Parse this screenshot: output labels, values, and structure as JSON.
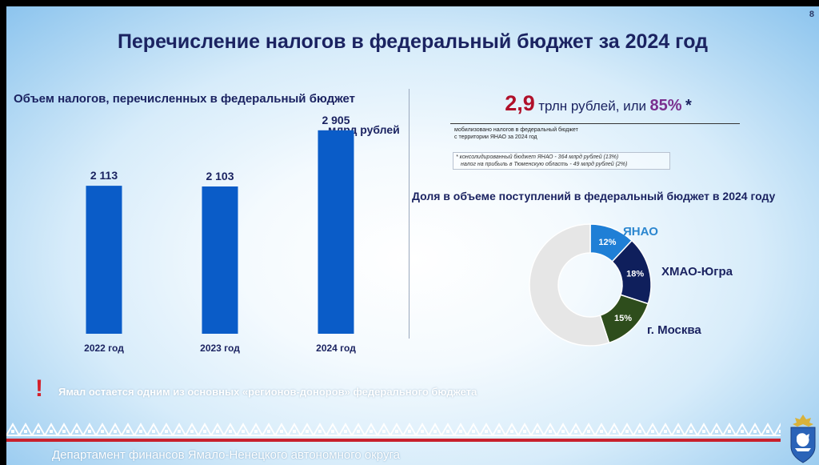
{
  "slide": {
    "page_number": "8",
    "title": "Перечисление налогов в федеральный бюджет за 2024 год"
  },
  "left_panel": {
    "heading": "Объем налогов, перечисленных в федеральный бюджет",
    "unit": "млрд рублей"
  },
  "chart_data": [
    {
      "type": "bar",
      "title": "Объем налогов, перечисленных в федеральный бюджет",
      "ylabel": "млрд рублей",
      "categories": [
        "2022 год",
        "2023 год",
        "2024 год"
      ],
      "values": [
        2113,
        2103,
        2905
      ],
      "value_labels": [
        "2 113",
        "2 103",
        "2 905"
      ],
      "ylim": [
        0,
        3200
      ],
      "color": "#0a5cc8",
      "grid": false
    },
    {
      "type": "pie",
      "title": "Доля в объеме поступлений в федеральный бюджет в 2024 году",
      "donut": true,
      "slices": [
        {
          "name": "ЯНАО",
          "value": 12,
          "label": "12%",
          "color": "#1f7fd6"
        },
        {
          "name": "ХМАО-Югра",
          "value": 18,
          "label": "18%",
          "color": "#0f1f5c"
        },
        {
          "name": "г. Москва",
          "value": 15,
          "label": "15%",
          "color": "#2e4d1c"
        },
        {
          "name": "",
          "value": 55,
          "label": "",
          "color": "#e6e6e6"
        }
      ]
    }
  ],
  "right_panel": {
    "headline_value": "2,9",
    "headline_mid": "трлн рублей, или",
    "headline_pct": "85%",
    "headline_star": "*",
    "note_line1": "мобилизовано налогов в федеральный бюджет",
    "note_line2": "с территории ЯНАО за 2024 год",
    "footnote_line1": "* консолидированный бюджет ЯНАО - 364 млрд рублей (13%)",
    "footnote_line2": "налог на прибыль в Тюменскую область - 49 млрд рублей (2%)",
    "pie_heading": "Доля в объеме поступлений в федеральный бюджет в 2024 году",
    "label_yanao": "ЯНАО",
    "label_hmao": "ХМАО-Югра",
    "label_moscow": "г. Москва"
  },
  "warning": {
    "icon": "exclamation-icon",
    "mark": "!",
    "text": "Ямал остается одним из основных «регионов-доноров» федерального бюджета"
  },
  "footer": {
    "department": "Департамент финансов Ямало-Ненецкого автономного округа",
    "accent_color": "#c8202c"
  }
}
